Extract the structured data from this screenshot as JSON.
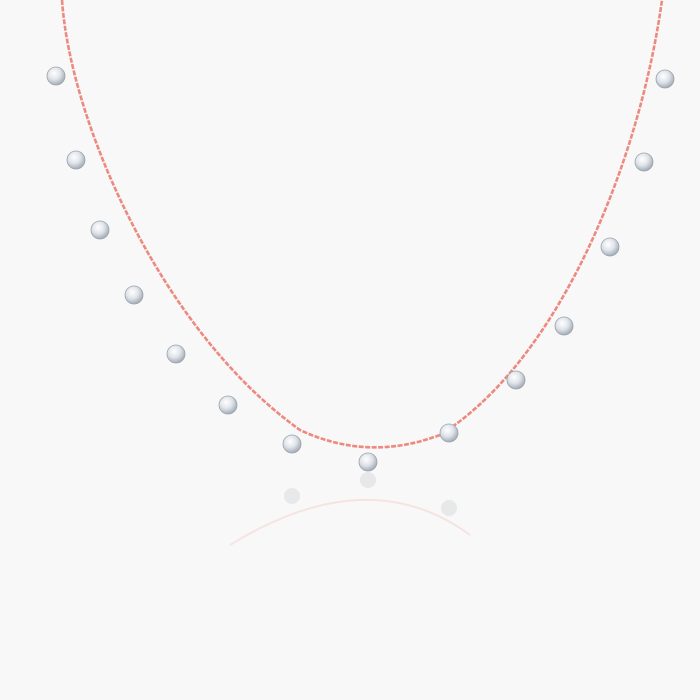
{
  "product": {
    "colors": {
      "background": "#f8f8f8",
      "chain": "#ec8a80",
      "stone": "#e4e8ee",
      "stone_shadow": "#9aa3ad"
    },
    "icon": "necklace-with-dangling-stones"
  }
}
